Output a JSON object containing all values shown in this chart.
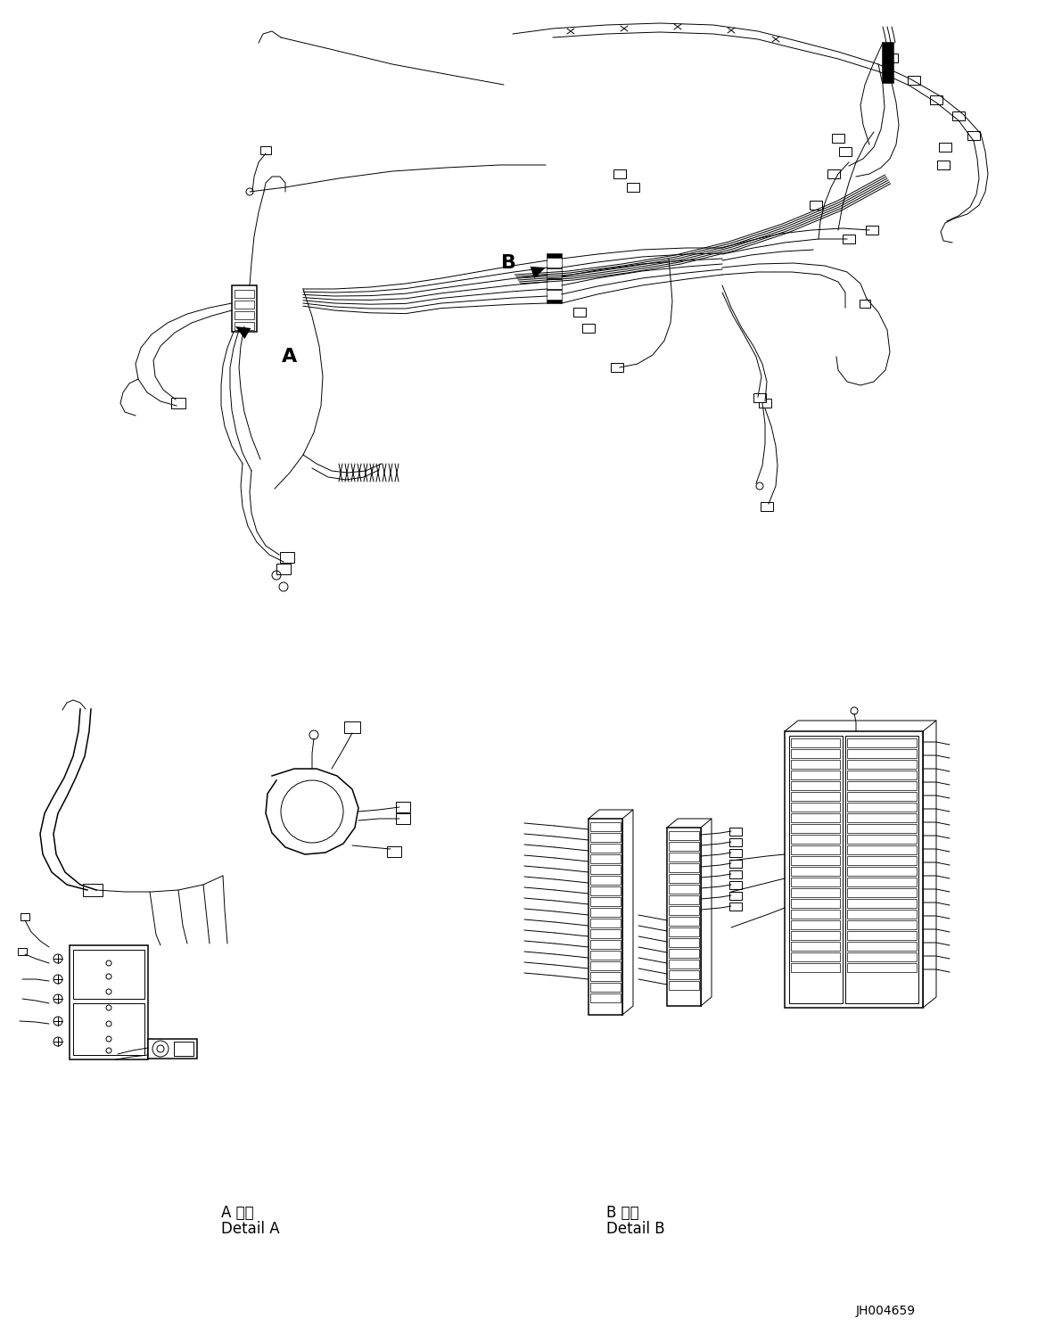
{
  "background_color": "#ffffff",
  "line_color": "#000000",
  "fig_width": 11.63,
  "fig_height": 14.88,
  "dpi": 100,
  "label_A": "A",
  "label_B": "B",
  "detail_a_jp": "A 詳細",
  "detail_a_en": "Detail A",
  "detail_b_jp": "B 詳細",
  "detail_b_en": "Detail B",
  "doc_number": "JH004659",
  "font_size_labels": 16,
  "font_size_detail": 12,
  "font_size_doc": 10,
  "lw_thin": 0.7,
  "lw_med": 1.1,
  "lw_thick": 1.8
}
